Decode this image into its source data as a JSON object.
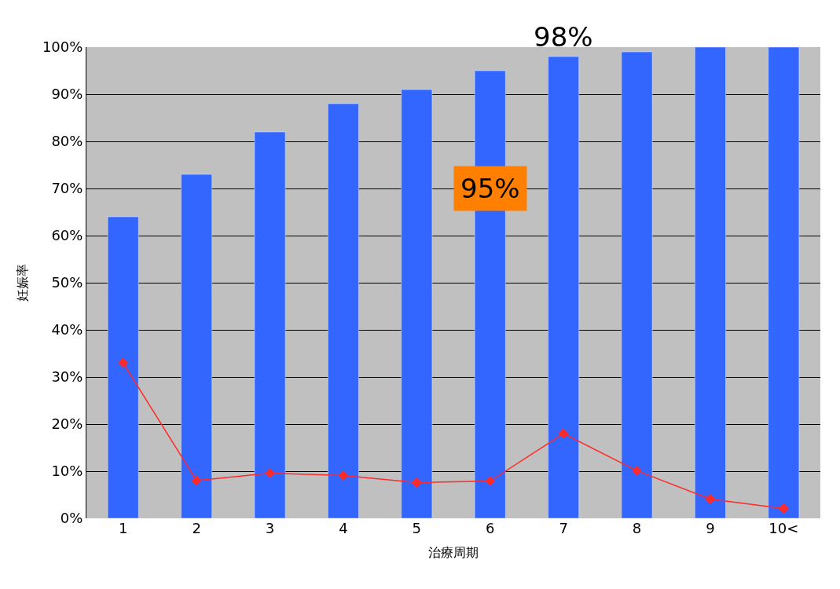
{
  "chart_data": {
    "type": "bar",
    "xlabel": "治療周期",
    "ylabel": "妊娠率",
    "categories": [
      "1",
      "2",
      "3",
      "4",
      "5",
      "6",
      "7",
      "8",
      "9",
      "10<"
    ],
    "series": [
      {
        "color": "#3366ff",
        "values": [
          64,
          73,
          82,
          88,
          91,
          95,
          98,
          99,
          100,
          100
        ]
      },
      {
        "type": "line",
        "color": "#ff2a2a",
        "marker": "diamond",
        "values": [
          33,
          8,
          9.6,
          9.1,
          7.6,
          7.9,
          18,
          10.1,
          4.1,
          2.1
        ]
      }
    ],
    "ylim": [
      0,
      100
    ],
    "yticks": [
      {
        "value": 0,
        "label": "0%"
      },
      {
        "value": 10,
        "label": "10%"
      },
      {
        "value": 20,
        "label": "20%"
      },
      {
        "value": 30,
        "label": "30%"
      },
      {
        "value": 40,
        "label": "40%"
      },
      {
        "value": 50,
        "label": "50%"
      },
      {
        "value": 60,
        "label": "60%"
      },
      {
        "value": 70,
        "label": "70%"
      },
      {
        "value": 80,
        "label": "80%"
      },
      {
        "value": 90,
        "label": "90%"
      },
      {
        "value": 100,
        "label": "100%"
      }
    ],
    "grid": "y",
    "annotations": [
      "98%",
      "95%"
    ]
  }
}
